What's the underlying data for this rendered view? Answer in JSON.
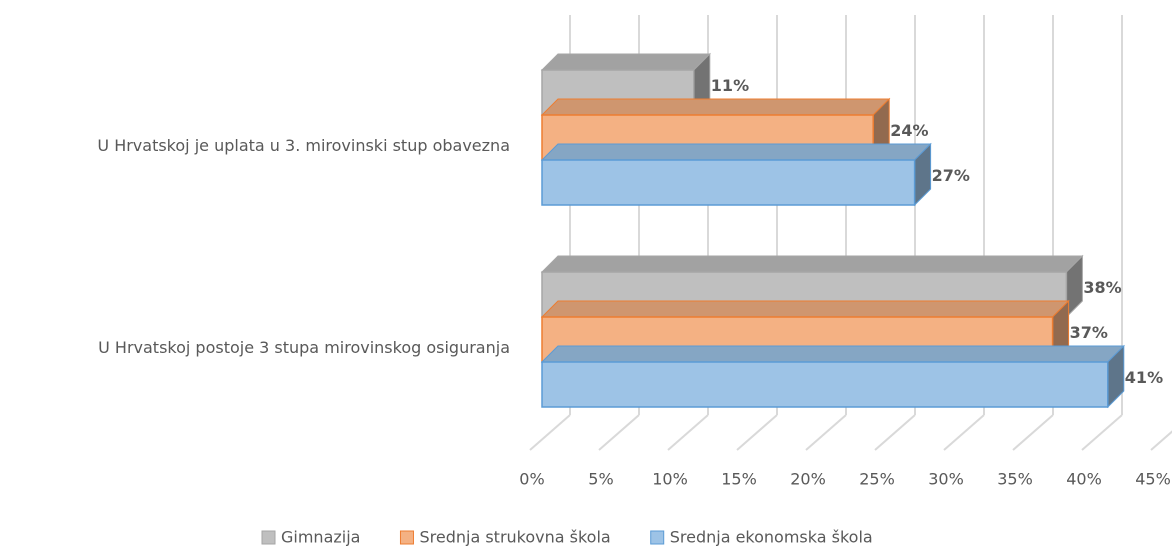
{
  "chart_data": {
    "type": "bar3d-horizontal",
    "categories": [
      "U Hrvatskoj je uplata u 3. mirovinski stup obavezna",
      "U Hrvatskoj postoje 3 stupa mirovinskog osiguranja"
    ],
    "series": [
      {
        "name": "Gimnazija",
        "color": "#bfbfbf",
        "edge": "#a6a6a6",
        "values": [
          11,
          38
        ],
        "value_labels": [
          "11%",
          "38%"
        ]
      },
      {
        "name": "Srednja strukovna škola",
        "color": "#f4b183",
        "edge": "#ed7d31",
        "values": [
          24,
          37
        ],
        "value_labels": [
          "24%",
          "37%"
        ]
      },
      {
        "name": "Srednja ekonomska škola",
        "color": "#9dc3e6",
        "edge": "#5b9bd5",
        "values": [
          27,
          41
        ],
        "value_labels": [
          "27%",
          "41%"
        ]
      }
    ],
    "xlim": [
      0,
      45
    ],
    "xticks": [
      {
        "value": 0,
        "label": "0%"
      },
      {
        "value": 5,
        "label": "5%"
      },
      {
        "value": 10,
        "label": "10%"
      },
      {
        "value": 15,
        "label": "15%"
      },
      {
        "value": 20,
        "label": "20%"
      },
      {
        "value": 25,
        "label": "25%"
      },
      {
        "value": 30,
        "label": "30%"
      },
      {
        "value": 35,
        "label": "35%"
      },
      {
        "value": 40,
        "label": "40%"
      },
      {
        "value": 45,
        "label": "45%"
      }
    ],
    "grid": true,
    "legend": "bottom"
  }
}
